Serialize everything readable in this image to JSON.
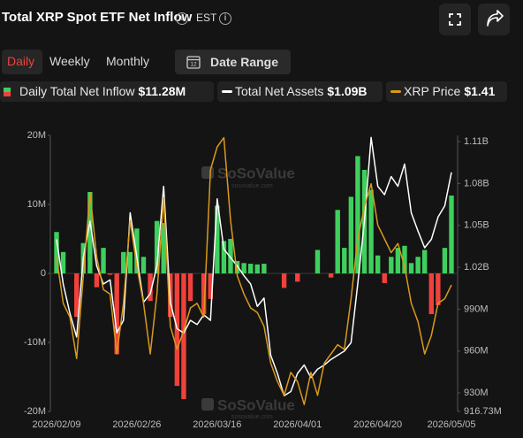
{
  "header": {
    "title": "Total XRP Spot ETF Net Inflow",
    "timezone": "EST"
  },
  "tabs": [
    "Daily",
    "Weekly",
    "Monthly"
  ],
  "active_tab": 0,
  "date_range": {
    "icon_text": "12",
    "label": "Date Range"
  },
  "chart_data": {
    "type": "combo",
    "watermark": {
      "brand": "SoSoValue",
      "site": "sosovalue.com"
    },
    "categories": [
      "2026/02/09",
      null,
      null,
      null,
      null,
      null,
      null,
      null,
      null,
      null,
      null,
      null,
      "2026/02/26",
      null,
      null,
      null,
      null,
      null,
      null,
      null,
      null,
      null,
      null,
      null,
      "2026/03/16",
      null,
      null,
      null,
      null,
      null,
      null,
      null,
      null,
      null,
      null,
      null,
      "2026/04/01",
      null,
      null,
      null,
      null,
      null,
      null,
      null,
      null,
      null,
      null,
      null,
      "2026/04/20",
      null,
      null,
      null,
      null,
      null,
      null,
      null,
      null,
      null,
      null,
      "2026/05/05"
    ],
    "series": [
      {
        "name": "Daily Total Net Inflow",
        "type": "bar",
        "latest": "$11.28M",
        "color": "#3ecf5c",
        "negative_color": "#f0413a",
        "values": [
          6.0,
          3.1,
          0,
          -6.3,
          4.4,
          11.8,
          -2.0,
          3.7,
          -0.2,
          -11.7,
          3.1,
          3.1,
          6.5,
          2.4,
          -4.0,
          7.6,
          7.3,
          -6.3,
          -16.3,
          -18.2,
          -4.0,
          0,
          -5.9,
          -3.7,
          9.8,
          4.7,
          5.0,
          1.8,
          1.5,
          1.4,
          1.3,
          1.4,
          0,
          0,
          -2.1,
          0,
          -1.2,
          0,
          0,
          3.4,
          0,
          -0.6,
          9.2,
          3.7,
          11.1,
          17.0,
          15.0,
          12.1,
          2.6,
          -1.4,
          2.4,
          3.7,
          4.0,
          1.5,
          2.4,
          3.4,
          -5.9,
          -4.6,
          3.7,
          11.28
        ]
      },
      {
        "name": "Total Net Assets",
        "type": "line",
        "axis": "y2",
        "latest": "$1.09B",
        "color": "#ffffff",
        "values": [
          1040,
          1008,
          987,
          970,
          1027,
          1053,
          1021,
          1008,
          1011,
          973,
          982,
          1059,
          1027,
          995,
          1001,
          1021,
          1078,
          995,
          976,
          973,
          982,
          979,
          986,
          982,
          1069,
          1033,
          1027,
          1021,
          1014,
          1008,
          992,
          998,
          957,
          944,
          928,
          931,
          944,
          950,
          941,
          947,
          950,
          954,
          957,
          960,
          966,
          1008,
          1053,
          1113,
          1078,
          1072,
          1085,
          1078,
          1094,
          1059,
          1046,
          1034,
          1040,
          1056,
          1064,
          1088
        ]
      },
      {
        "name": "XRP Price",
        "type": "line",
        "axis": "y3",
        "latest": "$1.41",
        "color": "#d99a1b",
        "values": [
          1.47,
          1.37,
          1.34,
          1.25,
          1.43,
          1.61,
          1.47,
          1.4,
          1.39,
          1.26,
          1.37,
          1.55,
          1.45,
          1.37,
          1.26,
          1.39,
          1.6,
          1.32,
          1.27,
          1.31,
          1.36,
          1.37,
          1.34,
          1.66,
          1.71,
          1.73,
          1.55,
          1.43,
          1.39,
          1.36,
          1.35,
          1.32,
          1.24,
          1.2,
          1.17,
          1.22,
          1.2,
          1.15,
          1.22,
          1.17,
          1.24,
          1.26,
          1.28,
          1.27,
          1.38,
          1.51,
          1.58,
          1.63,
          1.54,
          1.51,
          1.48,
          1.5,
          1.45,
          1.37,
          1.33,
          1.26,
          1.3,
          1.37,
          1.38,
          1.41
        ]
      }
    ],
    "ylim": [
      -20,
      20
    ],
    "yticks": [
      {
        "value": 20,
        "label": "20M"
      },
      {
        "value": 10,
        "label": "10M"
      },
      0,
      {
        "value": -10,
        "label": "-10M"
      },
      {
        "value": -20,
        "label": "-20M"
      }
    ],
    "y2lim": [
      916.73,
      1114.5
    ],
    "y2ticks": [
      {
        "value": 1110,
        "label": "1.11B"
      },
      {
        "value": 1080,
        "label": "1.08B"
      },
      {
        "value": 1050,
        "label": "1.05B"
      },
      {
        "value": 1020,
        "label": "1.02B"
      },
      {
        "value": 990,
        "label": "990M"
      },
      {
        "value": 960,
        "label": "960M"
      },
      {
        "value": 930,
        "label": "930M"
      },
      {
        "value": 916.73,
        "label": "916.73M"
      }
    ],
    "y3lim": [
      1.135,
      1.735
    ]
  }
}
